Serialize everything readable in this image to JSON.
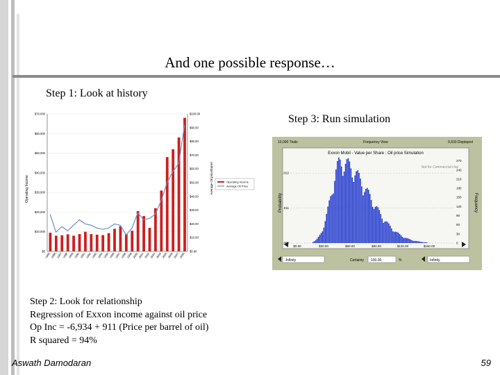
{
  "slide": {
    "title": "And one possible response…",
    "step1": "Step 1: Look at history",
    "step3": "Step 3: Run simulation",
    "step2_lines": [
      "Step 2: Look for relationship",
      "Regression of Exxon income against oil price",
      "Op Inc = -6,934 + 911 (Price per barrel of oil)",
      "R squared = 94%"
    ],
    "author": "Aswath Damodaran",
    "page": "59"
  },
  "colors": {
    "bar": "#cc1f1f",
    "line": "#6f8fbf",
    "hist": "#1a33cc",
    "panel": "#bcc2a0"
  },
  "chart_data": [
    {
      "type": "bar",
      "ylabel": "Operating Income",
      "y2label": "Average Oil price/barrel",
      "yticks": [
        "$0",
        "$10,000",
        "$20,000",
        "$30,000",
        "$40,000",
        "$50,000",
        "$60,000",
        "$70,000"
      ],
      "y2ticks": [
        "$0.00",
        "$10.00",
        "$20.00",
        "$30.00",
        "$40.00",
        "$50.00",
        "$60.00",
        "$70.00",
        "$80.00",
        "$90.00",
        "$100.00"
      ],
      "legend": [
        "Operating Income",
        "Average Oil Price"
      ],
      "categories": [
        "1985",
        "1986",
        "1987",
        "1988",
        "1989",
        "1990",
        "1991",
        "1992",
        "1993",
        "1994",
        "1995",
        "1996",
        "1997",
        "1998",
        "1999",
        "2000",
        "2001",
        "2002",
        "2003",
        "2004",
        "2005",
        "2006",
        "2007",
        "2008"
      ],
      "series": [
        {
          "name": "Operating Income",
          "values": [
            9500,
            8000,
            8200,
            8700,
            8000,
            8800,
            10000,
            8800,
            8500,
            8300,
            9300,
            11500,
            12800,
            8800,
            10500,
            20500,
            18000,
            12000,
            22000,
            31000,
            48000,
            52000,
            58000,
            68000
          ]
        },
        {
          "name": "Average Oil Price",
          "values": [
            27,
            14,
            18,
            15,
            19,
            23,
            20,
            19,
            17,
            16,
            17,
            20,
            19,
            12,
            17,
            28,
            23,
            24,
            27,
            37,
            50,
            58,
            64,
            92
          ]
        }
      ]
    },
    {
      "type": "bar",
      "trials": "10,000 Trials",
      "view": "Frequency View",
      "displayed": "9,933 Displayed",
      "title": "Exxon Mobil - Value per Share : Oil price Simulation",
      "watermark": "Not for Commercial Use",
      "ylabel": "Probability",
      "y2label": "Frequency",
      "yticks": [
        ".000",
        ".011",
        ".022"
      ],
      "y2ticks": [
        "0",
        "30",
        "60",
        "90",
        "120",
        "150",
        "180",
        "210",
        "240",
        "270"
      ],
      "xticks": [
        "$0.00",
        "$30.00",
        "$60.00",
        "$90.00",
        "$120.00",
        "$150.00"
      ],
      "left_field": "-Infinity",
      "certainty_label": "Certainty",
      "certainty": "100.00",
      "certainty_unit": "%",
      "right_field": "Infinity"
    }
  ]
}
